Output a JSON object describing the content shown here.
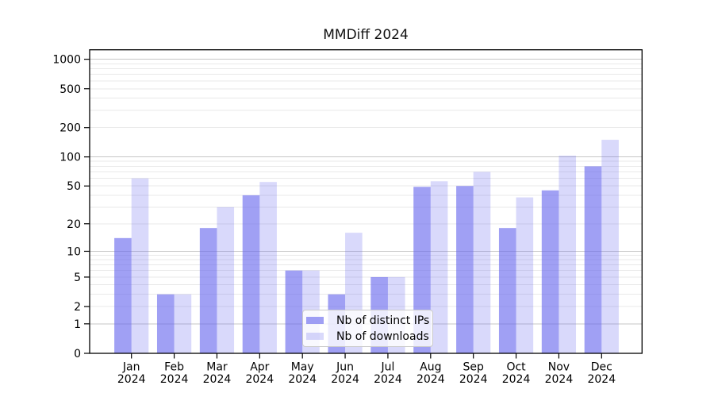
{
  "figure": {
    "title": "MMDiff 2024"
  },
  "chart_data": {
    "type": "bar",
    "title": "MMDiff 2024",
    "xlabel": "",
    "ylabel": "",
    "x_tick_line2": "2024",
    "categories": [
      "Jan",
      "Feb",
      "Mar",
      "Apr",
      "May",
      "Jun",
      "Jul",
      "Aug",
      "Sep",
      "Oct",
      "Nov",
      "Dec"
    ],
    "series": [
      {
        "name": "Nb of distinct IPs",
        "key": "distinct-ips",
        "color": "#6666ee",
        "fill_opacity": 0.62,
        "values": [
          14,
          3,
          18,
          40,
          6,
          3,
          5,
          49,
          50,
          18,
          45,
          80
        ]
      },
      {
        "name": "Nb of downloads",
        "key": "downloads",
        "color": "#6666ee",
        "fill_opacity": 0.25,
        "values": [
          60,
          3,
          30,
          55,
          6,
          16,
          5,
          56,
          70,
          38,
          103,
          150
        ]
      }
    ],
    "y_scale": "log10(value+1)",
    "y_ticks": [
      0,
      1,
      2,
      5,
      10,
      20,
      50,
      100,
      200,
      500,
      1000
    ],
    "ylim": [
      0,
      1250
    ],
    "grid": "horizontal, major and minor",
    "legend_position": "lower center"
  },
  "colors": {
    "bar_base": "#6666ee",
    "major_grid": "#c6c6c6",
    "minor_grid": "#e9e9e9",
    "axis": "#000000",
    "text": "#000000",
    "background": "#ffffff"
  }
}
